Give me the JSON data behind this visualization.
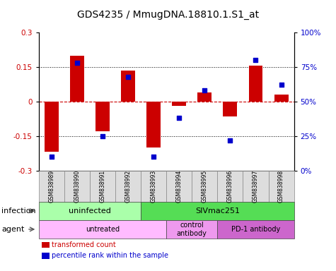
{
  "title": "GDS4235 / MmugDNA.18810.1.S1_at",
  "samples": [
    "GSM838989",
    "GSM838990",
    "GSM838991",
    "GSM838992",
    "GSM838993",
    "GSM838994",
    "GSM838995",
    "GSM838996",
    "GSM838997",
    "GSM838998"
  ],
  "bar_values": [
    -0.22,
    0.2,
    -0.13,
    0.135,
    -0.2,
    -0.02,
    0.04,
    -0.065,
    0.155,
    0.03
  ],
  "dot_values": [
    10,
    78,
    25,
    68,
    10,
    38,
    58,
    22,
    80,
    62
  ],
  "ylim": [
    -0.3,
    0.3
  ],
  "yticks": [
    -0.3,
    -0.15,
    0,
    0.15,
    0.3
  ],
  "ytick_labels": [
    "-0.3",
    "-0.15",
    "0",
    "0.15",
    "0.3"
  ],
  "y2lim": [
    0,
    100
  ],
  "y2ticks": [
    0,
    25,
    50,
    75,
    100
  ],
  "y2labels": [
    "0%",
    "25%",
    "50%",
    "75%",
    "100%"
  ],
  "bar_color": "#cc0000",
  "dot_color": "#0000cc",
  "hline_color": "#cc0000",
  "dotline_color": "#000000",
  "infection_groups": [
    {
      "label": "uninfected",
      "start": 0,
      "end": 4,
      "color": "#aaffaa"
    },
    {
      "label": "SIVmac251",
      "start": 4,
      "end": 10,
      "color": "#55dd55"
    }
  ],
  "agent_groups": [
    {
      "label": "untreated",
      "start": 0,
      "end": 5,
      "color": "#ffbbff"
    },
    {
      "label": "control\nantibody",
      "start": 5,
      "end": 7,
      "color": "#ee99ee"
    },
    {
      "label": "PD-1 antibody",
      "start": 7,
      "end": 10,
      "color": "#cc66cc"
    }
  ],
  "legend_items": [
    {
      "label": "transformed count",
      "color": "#cc0000"
    },
    {
      "label": "percentile rank within the sample",
      "color": "#0000cc"
    }
  ],
  "infection_label": "infection",
  "agent_label": "agent",
  "bg_color": "#ffffff",
  "title_fontsize": 10,
  "tick_fontsize": 7.5,
  "sample_fontsize": 5.5,
  "row_fontsize": 8,
  "legend_fontsize": 7
}
